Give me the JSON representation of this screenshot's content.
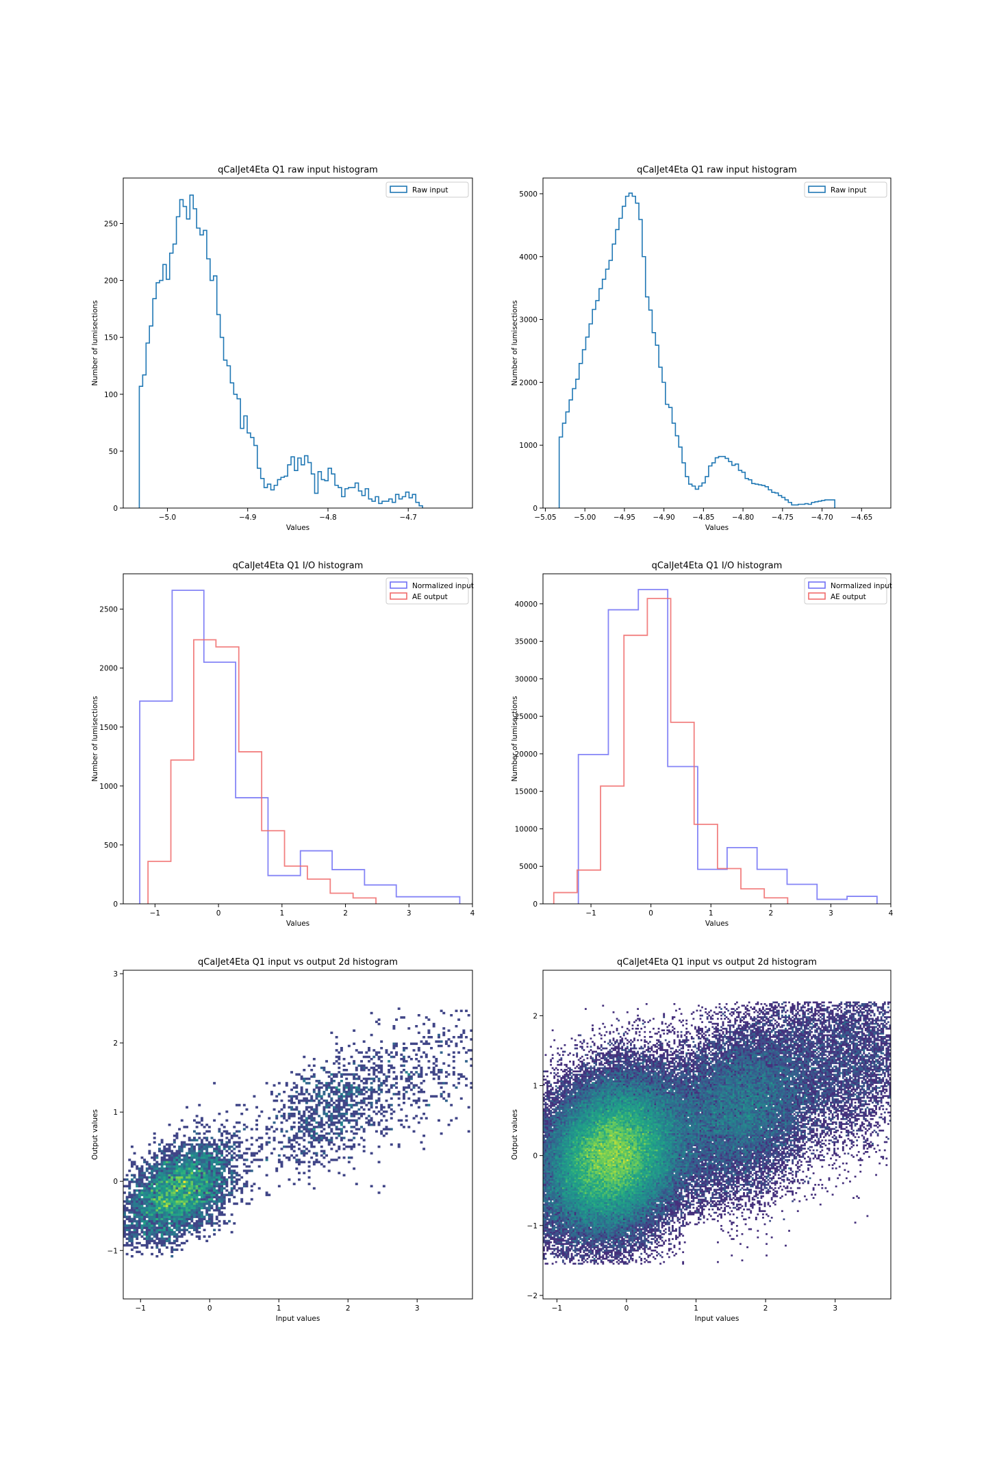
{
  "chart_data": [
    {
      "type": "histogram-step",
      "title": "qCalJet4Eta Q1 raw input histogram",
      "xlabel": "Values",
      "ylabel": "Number of lumisections",
      "xlim": [
        -5.055,
        -4.62
      ],
      "ylim": [
        0,
        290
      ],
      "xticks": [
        -5.0,
        -4.9,
        -4.8,
        -4.7
      ],
      "xticklabels": [
        "−5.0",
        "−4.9",
        "−4.8",
        "−4.7"
      ],
      "yticks": [
        0,
        50,
        100,
        150,
        200,
        250
      ],
      "yticklabels": [
        "0",
        "50",
        "100",
        "150",
        "200",
        "250"
      ],
      "legend": "top-right",
      "series": [
        {
          "name": "Raw input",
          "color": "#1f77b4",
          "bin_start": -5.035,
          "bin_width": 0.0042,
          "counts": [
            107,
            117,
            145,
            160,
            184,
            198,
            200,
            214,
            201,
            224,
            232,
            256,
            271,
            265,
            254,
            275,
            263,
            246,
            240,
            244,
            219,
            200,
            204,
            170,
            150,
            130,
            125,
            110,
            100,
            96,
            70,
            81,
            66,
            62,
            55,
            35,
            26,
            18,
            21,
            16,
            20,
            25,
            27,
            28,
            38,
            45,
            33,
            44,
            38,
            46,
            40,
            30,
            13,
            32,
            25,
            24,
            35,
            30,
            20,
            18,
            10,
            17,
            18,
            18,
            22,
            15,
            11,
            17,
            8,
            6,
            10,
            4,
            6,
            6,
            8,
            5,
            12,
            8,
            10,
            14,
            9,
            12,
            5,
            2
          ]
        }
      ]
    },
    {
      "type": "histogram-step",
      "title": "qCalJet4Eta Q1 raw input histogram",
      "xlabel": "Values",
      "ylabel": "Number of lumisections",
      "xlim": [
        -5.053,
        -4.613
      ],
      "ylim": [
        0,
        5250
      ],
      "xticks": [
        -5.05,
        -5.0,
        -4.95,
        -4.9,
        -4.85,
        -4.8,
        -4.75,
        -4.7,
        -4.65
      ],
      "xticklabels": [
        "−5.05",
        "−5.00",
        "−4.95",
        "−4.90",
        "−4.85",
        "−4.80",
        "−4.75",
        "−4.70",
        "−4.65"
      ],
      "yticks": [
        0,
        1000,
        2000,
        3000,
        4000,
        5000
      ],
      "yticklabels": [
        "0",
        "1000",
        "2000",
        "3000",
        "4000",
        "5000"
      ],
      "legend": "top-right",
      "series": [
        {
          "name": "Raw input",
          "color": "#1f77b4",
          "bin_start": -5.0325,
          "bin_width": 0.0042,
          "counts": [
            1130,
            1350,
            1530,
            1720,
            1900,
            2050,
            2300,
            2520,
            2720,
            2930,
            3160,
            3300,
            3490,
            3640,
            3800,
            3940,
            4200,
            4430,
            4610,
            4800,
            4960,
            5010,
            4960,
            4850,
            4590,
            4000,
            3360,
            3150,
            2790,
            2590,
            2240,
            2000,
            1650,
            1600,
            1350,
            1150,
            970,
            720,
            500,
            380,
            350,
            300,
            350,
            400,
            500,
            670,
            720,
            800,
            820,
            820,
            790,
            740,
            680,
            700,
            600,
            570,
            470,
            450,
            390,
            380,
            370,
            360,
            340,
            290,
            250,
            240,
            200,
            170,
            130,
            90,
            50,
            50,
            60,
            60,
            70,
            60,
            90,
            100,
            110,
            120,
            130,
            130,
            130
          ]
        }
      ]
    },
    {
      "type": "histogram-step",
      "title": "qCalJet4Eta Q1 I/O histogram",
      "xlabel": "Values",
      "ylabel": "Number of lumisections",
      "xlim": [
        -1.5,
        4.0
      ],
      "ylim": [
        0,
        2800
      ],
      "xticks": [
        -1,
        0,
        1,
        2,
        3,
        4
      ],
      "xticklabels": [
        "−1",
        "0",
        "1",
        "2",
        "3",
        "4"
      ],
      "yticks": [
        0,
        500,
        1000,
        1500,
        2000,
        2500
      ],
      "yticklabels": [
        "0",
        "500",
        "1000",
        "1500",
        "2000",
        "2500"
      ],
      "legend": "top-right",
      "series": [
        {
          "name": "Normalized input",
          "color": "#6f6ff5",
          "edges": [
            -1.24,
            -0.73,
            -0.23,
            0.27,
            0.78,
            1.29,
            1.79,
            2.3,
            2.8,
            3.3,
            3.8
          ],
          "counts": [
            1720,
            2660,
            2050,
            900,
            240,
            450,
            290,
            160,
            60,
            60
          ]
        },
        {
          "name": "AE output",
          "color": "#f06a6a",
          "edges": [
            -1.11,
            -0.75,
            -0.39,
            -0.04,
            0.32,
            0.68,
            1.04,
            1.4,
            1.76,
            2.12,
            2.48
          ],
          "counts": [
            360,
            1220,
            2240,
            2180,
            1290,
            620,
            320,
            210,
            90,
            50
          ]
        }
      ]
    },
    {
      "type": "histogram-step",
      "title": "qCalJet4Eta Q1 I/O histogram",
      "xlabel": "Values",
      "ylabel": "Number of lumisections",
      "xlim": [
        -1.8,
        4.0
      ],
      "ylim": [
        0,
        44000
      ],
      "xticks": [
        -1,
        0,
        1,
        2,
        3,
        4
      ],
      "xticklabels": [
        "−1",
        "0",
        "1",
        "2",
        "3",
        "4"
      ],
      "yticks": [
        0,
        5000,
        10000,
        15000,
        20000,
        25000,
        30000,
        35000,
        40000
      ],
      "yticklabels": [
        "0",
        "5000",
        "10000",
        "15000",
        "20000",
        "25000",
        "30000",
        "35000",
        "40000"
      ],
      "legend": "top-right",
      "series": [
        {
          "name": "Normalized input",
          "color": "#6f6ff5",
          "edges": [
            -1.21,
            -0.71,
            -0.21,
            0.28,
            0.78,
            1.27,
            1.77,
            2.27,
            2.77,
            3.27,
            3.77
          ],
          "counts": [
            19900,
            39200,
            41900,
            18300,
            4600,
            7500,
            4600,
            2600,
            600,
            1000
          ]
        },
        {
          "name": "AE output",
          "color": "#f06a6a",
          "edges": [
            -1.62,
            -1.23,
            -0.84,
            -0.45,
            -0.06,
            0.33,
            0.72,
            1.11,
            1.5,
            1.89,
            2.28
          ],
          "counts": [
            1500,
            4500,
            15700,
            35800,
            40700,
            24200,
            10600,
            4700,
            2000,
            800
          ]
        }
      ]
    },
    {
      "type": "heatmap",
      "title": "qCalJet4Eta Q1 input vs output 2d histogram",
      "xlabel": "Input values",
      "ylabel": "Output values",
      "xlim": [
        -1.25,
        3.8
      ],
      "ylim": [
        -1.7,
        3.05
      ],
      "xticks": [
        -1,
        0,
        1,
        2,
        3
      ],
      "xticklabels": [
        "−1",
        "0",
        "1",
        "2",
        "3"
      ],
      "yticks": [
        -1,
        0,
        1,
        2,
        3
      ],
      "yticklabels": [
        "−1",
        "0",
        "1",
        "2",
        "3"
      ],
      "colormap": "viridis",
      "grid_bins": [
        140,
        150
      ],
      "components": [
        {
          "cx": -0.45,
          "cy": -0.15,
          "sx": 0.38,
          "sy": 0.35,
          "rho": 0.45,
          "n": 5000
        },
        {
          "cx": 1.75,
          "cy": 1.05,
          "sx": 0.55,
          "sy": 0.45,
          "rho": 0.5,
          "n": 1100
        },
        {
          "cx": 3.0,
          "cy": 1.6,
          "sx": 0.5,
          "sy": 0.5,
          "rho": 0.3,
          "n": 350
        }
      ],
      "clip_y": [
        -1.1,
        2.5
      ]
    },
    {
      "type": "heatmap",
      "title": "qCalJet4Eta Q1 input vs output 2d histogram",
      "xlabel": "Input values",
      "ylabel": "Output values",
      "xlim": [
        -1.2,
        3.8
      ],
      "ylim": [
        -2.05,
        2.65
      ],
      "xticks": [
        -1,
        0,
        1,
        2,
        3
      ],
      "xticklabels": [
        "−1",
        "0",
        "1",
        "2",
        "3"
      ],
      "yticks": [
        -2,
        -1,
        0,
        1,
        2
      ],
      "yticklabels": [
        "−2",
        "−1",
        "0",
        "1",
        "2"
      ],
      "colormap": "viridis",
      "grid_bins": [
        200,
        200
      ],
      "components": [
        {
          "cx": -0.2,
          "cy": 0.0,
          "sx": 0.5,
          "sy": 0.55,
          "rho": 0.2,
          "n": 90000
        },
        {
          "cx": 1.65,
          "cy": 0.7,
          "sx": 0.55,
          "sy": 0.6,
          "rho": 0.25,
          "n": 22000
        },
        {
          "cx": 3.2,
          "cy": 1.4,
          "sx": 0.55,
          "sy": 0.6,
          "rho": 0.1,
          "n": 6000
        }
      ],
      "clip_y": [
        -1.55,
        2.2
      ],
      "clip_x_upper_at_low_y": 0.85
    }
  ]
}
